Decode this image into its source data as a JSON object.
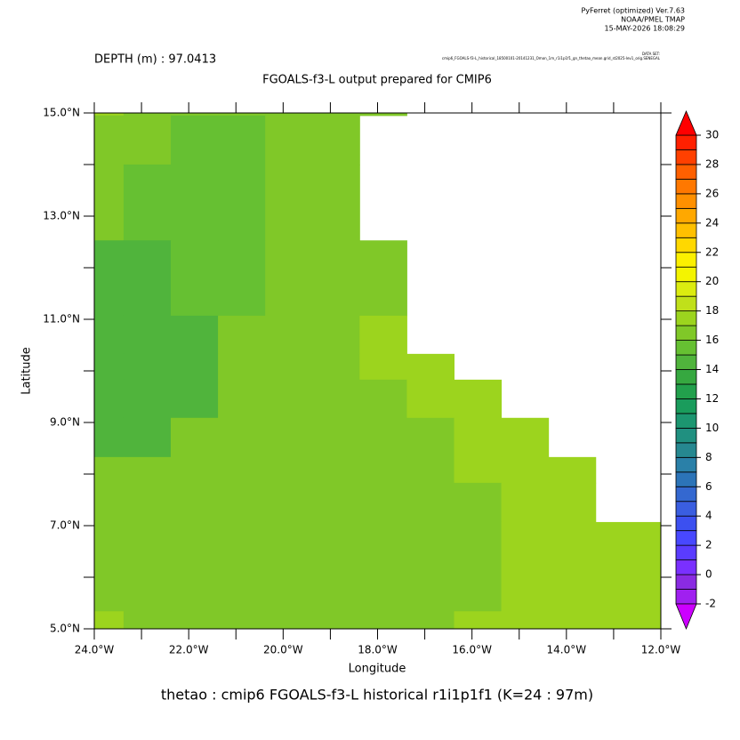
{
  "chart_data": {
    "type": "heatmap",
    "header": [
      "PyFerret (optimized) Ver.7.63",
      "NOAA/PMEL TMAP",
      "15-MAY-2026 18:08:29"
    ],
    "dataset_label": "DATA SET:",
    "dataset": "cmip6_FGOALS-f3-L_historical_18500101-20141231_Omon_1m_r1i1p1f1_gn_thetao_mean.grid_st2025-lev1_orig.SENEGAL",
    "subtitle": "DEPTH (m) : 97.0413",
    "title": "FGOALS-f3-L output prepared for CMIP6",
    "xlabel": "Longitude",
    "ylabel": "Latitude",
    "footer": "thetao : cmip6 FGOALS-f3-L historical r1i1p1f1   (K=24 : 97m)",
    "xlim": [
      -24,
      -12
    ],
    "ylim": [
      5,
      15
    ],
    "xticks": [
      {
        "value": -24,
        "label": "24.0°W"
      },
      {
        "value": -22,
        "label": "22.0°W"
      },
      {
        "value": -20,
        "label": "20.0°W"
      },
      {
        "value": -18,
        "label": "18.0°W"
      },
      {
        "value": -16,
        "label": "16.0°W"
      },
      {
        "value": -14,
        "label": "14.0°W"
      },
      {
        "value": -12,
        "label": "12.0°W"
      }
    ],
    "xminor": [
      -23,
      -21,
      -19,
      -17,
      -15,
      -13
    ],
    "yticks": [
      {
        "value": 15,
        "label": "15.0°N"
      },
      {
        "value": 13,
        "label": "13.0°N"
      },
      {
        "value": 11,
        "label": "11.0°N"
      },
      {
        "value": 9,
        "label": "9.0°N"
      },
      {
        "value": 7,
        "label": "7.0°N"
      },
      {
        "value": 5,
        "label": "5.0°N"
      }
    ],
    "yminor": [
      14,
      12,
      10,
      8,
      6
    ],
    "x_edges": [
      -24,
      -23.38,
      -22.38,
      -21.38,
      -20.38,
      -19.38,
      -18.38,
      -17.38,
      -16.38,
      -15.38,
      -14.38,
      -13.38,
      -12
    ],
    "y_edges": [
      15,
      14.95,
      14.0,
      12.53,
      11.07,
      10.33,
      9.83,
      9.09,
      8.33,
      7.83,
      7.07,
      5.34,
      5.0
    ],
    "values": [
      [
        17.3,
        16.4,
        16.4,
        16.4,
        16.4,
        16.4,
        16.4,
        null,
        null,
        null,
        null,
        null
      ],
      [
        16.4,
        16.4,
        15.4,
        15.4,
        16.4,
        16.4,
        null,
        null,
        null,
        null,
        null,
        null
      ],
      [
        16.4,
        15.4,
        15.4,
        15.4,
        16.4,
        16.4,
        null,
        null,
        null,
        null,
        null,
        null
      ],
      [
        14.6,
        14.6,
        15.4,
        15.4,
        16.4,
        16.4,
        16.4,
        null,
        null,
        null,
        null,
        null
      ],
      [
        14.6,
        14.6,
        14.6,
        16.4,
        16.4,
        16.4,
        17.3,
        null,
        null,
        null,
        null,
        null
      ],
      [
        14.6,
        14.6,
        14.6,
        16.4,
        16.4,
        16.4,
        17.3,
        17.3,
        null,
        null,
        null,
        null
      ],
      [
        14.6,
        14.6,
        14.6,
        16.4,
        16.4,
        16.4,
        16.4,
        17.3,
        17.3,
        null,
        null,
        null
      ],
      [
        14.6,
        14.6,
        16.4,
        16.4,
        16.4,
        16.4,
        16.4,
        16.4,
        17.3,
        17.3,
        null,
        null
      ],
      [
        16.4,
        16.4,
        16.4,
        16.4,
        16.4,
        16.4,
        16.4,
        16.4,
        17.3,
        17.3,
        17.3,
        null
      ],
      [
        16.4,
        16.4,
        16.4,
        16.4,
        16.4,
        16.4,
        16.4,
        16.4,
        16.4,
        17.3,
        17.3,
        null
      ],
      [
        16.4,
        16.4,
        16.4,
        16.4,
        16.4,
        16.4,
        16.4,
        16.4,
        16.4,
        17.3,
        17.3,
        17.3
      ],
      [
        17.3,
        16.4,
        16.4,
        16.4,
        16.4,
        16.4,
        16.4,
        16.4,
        17.3,
        17.3,
        17.3,
        17.3
      ]
    ],
    "colorbar": {
      "lim": [
        -2,
        30
      ],
      "ticks": [
        -2,
        0,
        2,
        4,
        6,
        8,
        10,
        12,
        14,
        16,
        18,
        20,
        22,
        24,
        26,
        28,
        30
      ],
      "colors": [
        "#a020f0",
        "#8a2be2",
        "#7a30ff",
        "#5a3cff",
        "#4848ff",
        "#3c50f0",
        "#3a5ee0",
        "#3468d0",
        "#2c74b8",
        "#2a80a8",
        "#268890",
        "#209080",
        "#1c9670",
        "#1a9c5c",
        "#22a04c",
        "#36a840",
        "#50b43c",
        "#66c032",
        "#80c828",
        "#9cd41e",
        "#c0e01a",
        "#dcec10",
        "#f4f400",
        "#fcf000",
        "#ffd800",
        "#ffc000",
        "#ffa800",
        "#ff9000",
        "#ff7800",
        "#ff6000",
        "#ff4000",
        "#ff2000"
      ],
      "over_color": "#ff0000",
      "under_color": "#cc00ff"
    }
  }
}
